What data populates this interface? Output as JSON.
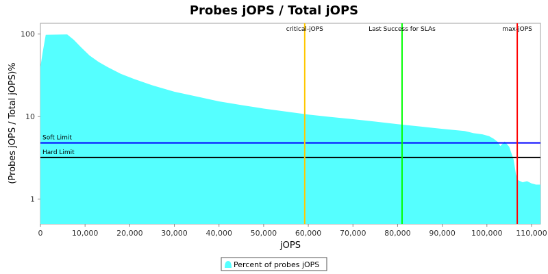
{
  "chart_data": {
    "type": "area",
    "title": "Probes jOPS / Total jOPS",
    "xlabel": "jOPS",
    "ylabel": "(Probes jOPS / Total jOPS)%",
    "y_scale": "log",
    "xlim": [
      0,
      112000
    ],
    "ylim": [
      0.5,
      135
    ],
    "x_ticks": [
      0,
      10000,
      20000,
      30000,
      40000,
      50000,
      60000,
      70000,
      80000,
      90000,
      100000,
      110000
    ],
    "x_tick_labels": [
      "0",
      "10,000",
      "20,000",
      "30,000",
      "40,000",
      "50,000",
      "60,000",
      "70,000",
      "80,000",
      "90,000",
      "100,000",
      "110,000"
    ],
    "y_ticks": [
      1,
      10,
      100
    ],
    "y_tick_labels": [
      "1",
      "10",
      "100"
    ],
    "grid": false,
    "legend_position": "bottom",
    "series": [
      {
        "name": "Percent of probes jOPS",
        "color": "#55ffff",
        "x": [
          0,
          500,
          1200,
          6000,
          7500,
          9000,
          11000,
          13000,
          15000,
          18000,
          21000,
          25000,
          30000,
          35000,
          40000,
          45000,
          50000,
          55000,
          60000,
          65000,
          70000,
          75000,
          80000,
          85000,
          90000,
          95000,
          96000,
          97000,
          99000,
          100500,
          101500,
          102500,
          103000,
          104000,
          105000,
          106000,
          106500,
          107000,
          108000,
          109000,
          110000,
          111000,
          112000
        ],
        "y": [
          40,
          60,
          98,
          99,
          85,
          70,
          55,
          46,
          40,
          33,
          28.5,
          24,
          20,
          17.5,
          15.3,
          13.8,
          12.5,
          11.5,
          10.6,
          9.9,
          9.3,
          8.7,
          8.1,
          7.6,
          7.1,
          6.7,
          6.5,
          6.3,
          6.1,
          5.8,
          5.4,
          4.9,
          4.4,
          5.0,
          4.3,
          3.0,
          2.0,
          1.7,
          1.6,
          1.65,
          1.55,
          1.5,
          1.5
        ]
      }
    ],
    "markers": [
      {
        "label": "critical-jOPS",
        "x": 59200,
        "color": "#ffc800"
      },
      {
        "label": "Last Success for SLAs",
        "x": 81000,
        "color": "#00ff00"
      },
      {
        "label": "max-jOPS",
        "x": 106800,
        "color": "#ff0000"
      }
    ],
    "limits": [
      {
        "label": "Soft Limit",
        "y": 4.8,
        "color": "#0000ff"
      },
      {
        "label": "Hard Limit",
        "y": 3.2,
        "color": "#000000"
      }
    ]
  }
}
